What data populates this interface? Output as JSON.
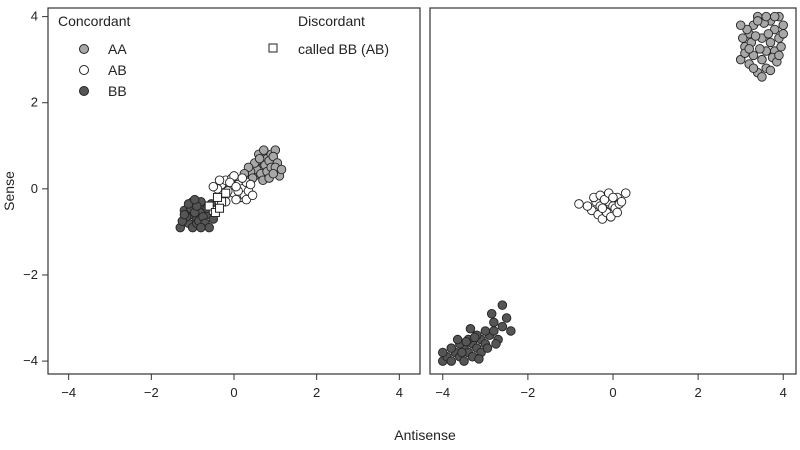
{
  "chart_data": {
    "type": "scatter",
    "xlabel": "Antisense",
    "ylabel": "Sense",
    "colors": {
      "AA": "#a8a8a8",
      "AB": "#ffffff",
      "BB": "#555555",
      "called_BB_AB": "#ffffff",
      "stroke": "#222222"
    },
    "legend": {
      "concordant_title": "Concordant",
      "discordant_title": "Discordant",
      "items": [
        {
          "key": "AA",
          "label": "AA"
        },
        {
          "key": "AB",
          "label": "AB"
        },
        {
          "key": "BB",
          "label": "BB"
        }
      ],
      "discordant_items": [
        {
          "key": "called_BB_AB",
          "label": "called BB (AB)"
        }
      ]
    },
    "panels": [
      {
        "xlim": [
          -4.5,
          4.5
        ],
        "ylim": [
          -4.3,
          4.2
        ],
        "xticks": [
          -4,
          -2,
          0,
          2,
          4
        ],
        "yticks": [
          -4,
          -2,
          0,
          2,
          4
        ],
        "series": [
          {
            "name": "AA",
            "points": [
              [
                0.5,
                0.3
              ],
              [
                0.6,
                0.6
              ],
              [
                0.7,
                0.5
              ],
              [
                0.8,
                0.7
              ],
              [
                0.9,
                0.8
              ],
              [
                1.0,
                0.9
              ],
              [
                0.55,
                0.45
              ],
              [
                0.65,
                0.35
              ],
              [
                0.75,
                0.55
              ],
              [
                0.85,
                0.65
              ],
              [
                0.95,
                0.75
              ],
              [
                1.05,
                0.6
              ],
              [
                0.3,
                0.2
              ],
              [
                0.4,
                0.4
              ],
              [
                0.6,
                0.8
              ],
              [
                0.8,
                0.4
              ],
              [
                0.9,
                0.5
              ],
              [
                1.1,
                0.3
              ],
              [
                0.7,
                0.2
              ],
              [
                0.5,
                0.6
              ],
              [
                0.35,
                0.5
              ],
              [
                0.45,
                0.25
              ],
              [
                1.0,
                0.5
              ],
              [
                0.85,
                0.25
              ],
              [
                0.95,
                0.35
              ],
              [
                1.15,
                0.45
              ],
              [
                0.62,
                0.7
              ],
              [
                0.72,
                0.9
              ],
              [
                0.25,
                0.35
              ]
            ]
          },
          {
            "name": "AB",
            "points": [
              [
                -0.3,
                0.1
              ],
              [
                -0.2,
                0.2
              ],
              [
                -0.1,
                0.0
              ],
              [
                0.0,
                -0.1
              ],
              [
                0.1,
                0.1
              ],
              [
                0.2,
                0.0
              ],
              [
                -0.4,
                0.0
              ],
              [
                0.15,
                -0.2
              ],
              [
                -0.15,
                -0.05
              ],
              [
                0.3,
                0.15
              ],
              [
                -0.05,
                0.25
              ],
              [
                0.05,
                -0.25
              ],
              [
                0.25,
                -0.15
              ],
              [
                -0.25,
                -0.2
              ],
              [
                0.35,
                -0.05
              ],
              [
                -0.35,
                0.2
              ],
              [
                0.0,
                0.3
              ],
              [
                0.1,
                -0.05
              ],
              [
                -0.1,
                0.15
              ],
              [
                0.2,
                0.25
              ],
              [
                0.4,
                0.1
              ],
              [
                -0.2,
                -0.3
              ],
              [
                0.05,
                0.05
              ],
              [
                0.3,
                -0.25
              ],
              [
                -0.5,
                0.05
              ],
              [
                0.45,
                -0.15
              ]
            ]
          },
          {
            "name": "BB",
            "points": [
              [
                -1.3,
                -0.9
              ],
              [
                -1.1,
                -0.8
              ],
              [
                -1.0,
                -0.6
              ],
              [
                -0.9,
                -0.7
              ],
              [
                -0.8,
                -0.5
              ],
              [
                -0.7,
                -0.4
              ],
              [
                -1.2,
                -0.5
              ],
              [
                -1.0,
                -0.9
              ],
              [
                -0.9,
                -0.8
              ],
              [
                -0.8,
                -0.3
              ],
              [
                -0.6,
                -0.6
              ],
              [
                -1.15,
                -0.65
              ],
              [
                -1.05,
                -0.45
              ],
              [
                -0.95,
                -0.55
              ],
              [
                -0.85,
                -0.75
              ],
              [
                -0.75,
                -0.65
              ],
              [
                -0.65,
                -0.45
              ],
              [
                -0.55,
                -0.35
              ],
              [
                -1.25,
                -0.75
              ],
              [
                -0.7,
                -0.8
              ],
              [
                -1.0,
                -0.3
              ],
              [
                -0.6,
                -0.9
              ],
              [
                -0.5,
                -0.7
              ],
              [
                -1.1,
                -0.35
              ],
              [
                -0.9,
                -0.4
              ],
              [
                -0.8,
                -0.9
              ],
              [
                -1.2,
                -0.6
              ],
              [
                -0.95,
                -0.25
              ]
            ]
          },
          {
            "name": "called_BB_AB",
            "points": [
              [
                -0.5,
                -0.5
              ],
              [
                -0.3,
                -0.3
              ],
              [
                -0.4,
                -0.2
              ],
              [
                -0.6,
                -0.4
              ],
              [
                -0.2,
                -0.1
              ],
              [
                -0.45,
                -0.55
              ],
              [
                -0.35,
                -0.45
              ]
            ]
          }
        ]
      },
      {
        "xlim": [
          -4.3,
          4.3
        ],
        "ylim": [
          -4.3,
          4.2
        ],
        "xticks": [
          -4,
          -2,
          0,
          2,
          4
        ],
        "yticks": [],
        "series": [
          {
            "name": "AA",
            "points": [
              [
                3.0,
                3.0
              ],
              [
                3.1,
                3.3
              ],
              [
                3.2,
                3.6
              ],
              [
                3.3,
                3.8
              ],
              [
                3.4,
                4.0
              ],
              [
                3.5,
                3.5
              ],
              [
                3.6,
                3.2
              ],
              [
                3.7,
                3.9
              ],
              [
                3.8,
                3.7
              ],
              [
                3.9,
                4.0
              ],
              [
                4.0,
                3.8
              ],
              [
                3.2,
                2.9
              ],
              [
                3.3,
                3.1
              ],
              [
                3.4,
                2.7
              ],
              [
                3.5,
                3.0
              ],
              [
                3.6,
                2.8
              ],
              [
                3.7,
                3.4
              ],
              [
                3.8,
                3.2
              ],
              [
                3.9,
                3.5
              ],
              [
                4.0,
                3.6
              ],
              [
                3.15,
                3.7
              ],
              [
                3.25,
                3.4
              ],
              [
                3.35,
                3.55
              ],
              [
                3.45,
                3.25
              ],
              [
                3.55,
                3.85
              ],
              [
                3.65,
                3.6
              ],
              [
                3.75,
                3.05
              ],
              [
                3.85,
                2.95
              ],
              [
                3.95,
                3.3
              ],
              [
                3.05,
                3.5
              ],
              [
                3.0,
                3.8
              ],
              [
                3.4,
                3.9
              ],
              [
                3.6,
                4.0
              ],
              [
                3.8,
                4.0
              ],
              [
                3.5,
                2.6
              ],
              [
                3.3,
                2.8
              ],
              [
                3.7,
                2.75
              ],
              [
                3.1,
                3.15
              ],
              [
                3.9,
                3.1
              ],
              [
                3.2,
                3.25
              ]
            ]
          },
          {
            "name": "AB",
            "points": [
              [
                -0.4,
                -0.3
              ],
              [
                -0.3,
                -0.4
              ],
              [
                -0.2,
                -0.5
              ],
              [
                -0.1,
                -0.3
              ],
              [
                0.0,
                -0.4
              ],
              [
                0.1,
                -0.2
              ],
              [
                -0.5,
                -0.5
              ],
              [
                -0.35,
                -0.6
              ],
              [
                -0.25,
                -0.7
              ],
              [
                -0.15,
                -0.55
              ],
              [
                -0.05,
                -0.65
              ],
              [
                0.05,
                -0.45
              ],
              [
                0.15,
                -0.35
              ],
              [
                -0.45,
                -0.2
              ],
              [
                -0.3,
                -0.15
              ],
              [
                -0.2,
                -0.25
              ],
              [
                0.2,
                -0.3
              ],
              [
                -0.1,
                -0.1
              ],
              [
                0.0,
                -0.2
              ],
              [
                0.3,
                -0.1
              ],
              [
                -0.6,
                -0.4
              ],
              [
                -0.8,
                -0.35
              ],
              [
                -0.25,
                -0.45
              ],
              [
                0.1,
                -0.55
              ]
            ]
          },
          {
            "name": "BB",
            "points": [
              [
                -4.0,
                -4.0
              ],
              [
                -3.9,
                -3.9
              ],
              [
                -3.8,
                -4.0
              ],
              [
                -3.7,
                -3.8
              ],
              [
                -3.6,
                -3.9
              ],
              [
                -3.5,
                -3.7
              ],
              [
                -3.4,
                -3.8
              ],
              [
                -3.3,
                -3.6
              ],
              [
                -3.2,
                -3.7
              ],
              [
                -3.1,
                -3.5
              ],
              [
                -3.0,
                -3.6
              ],
              [
                -2.9,
                -3.4
              ],
              [
                -2.8,
                -3.3
              ],
              [
                -2.7,
                -3.5
              ],
              [
                -2.6,
                -3.2
              ],
              [
                -2.5,
                -3.0
              ],
              [
                -2.6,
                -2.7
              ],
              [
                -2.8,
                -3.1
              ],
              [
                -3.0,
                -3.3
              ],
              [
                -3.2,
                -3.4
              ],
              [
                -3.4,
                -3.5
              ],
              [
                -3.6,
                -3.6
              ],
              [
                -3.8,
                -3.7
              ],
              [
                -4.0,
                -3.8
              ],
              [
                -3.5,
                -4.0
              ],
              [
                -3.3,
                -3.9
              ],
              [
                -3.1,
                -3.8
              ],
              [
                -2.95,
                -3.7
              ],
              [
                -2.75,
                -3.6
              ],
              [
                -2.4,
                -3.3
              ],
              [
                -3.35,
                -3.25
              ],
              [
                -3.15,
                -3.95
              ],
              [
                -3.45,
                -3.55
              ],
              [
                -3.25,
                -3.45
              ],
              [
                -3.55,
                -3.8
              ],
              [
                -3.65,
                -3.5
              ],
              [
                -2.85,
                -2.9
              ]
            ]
          }
        ]
      }
    ]
  }
}
